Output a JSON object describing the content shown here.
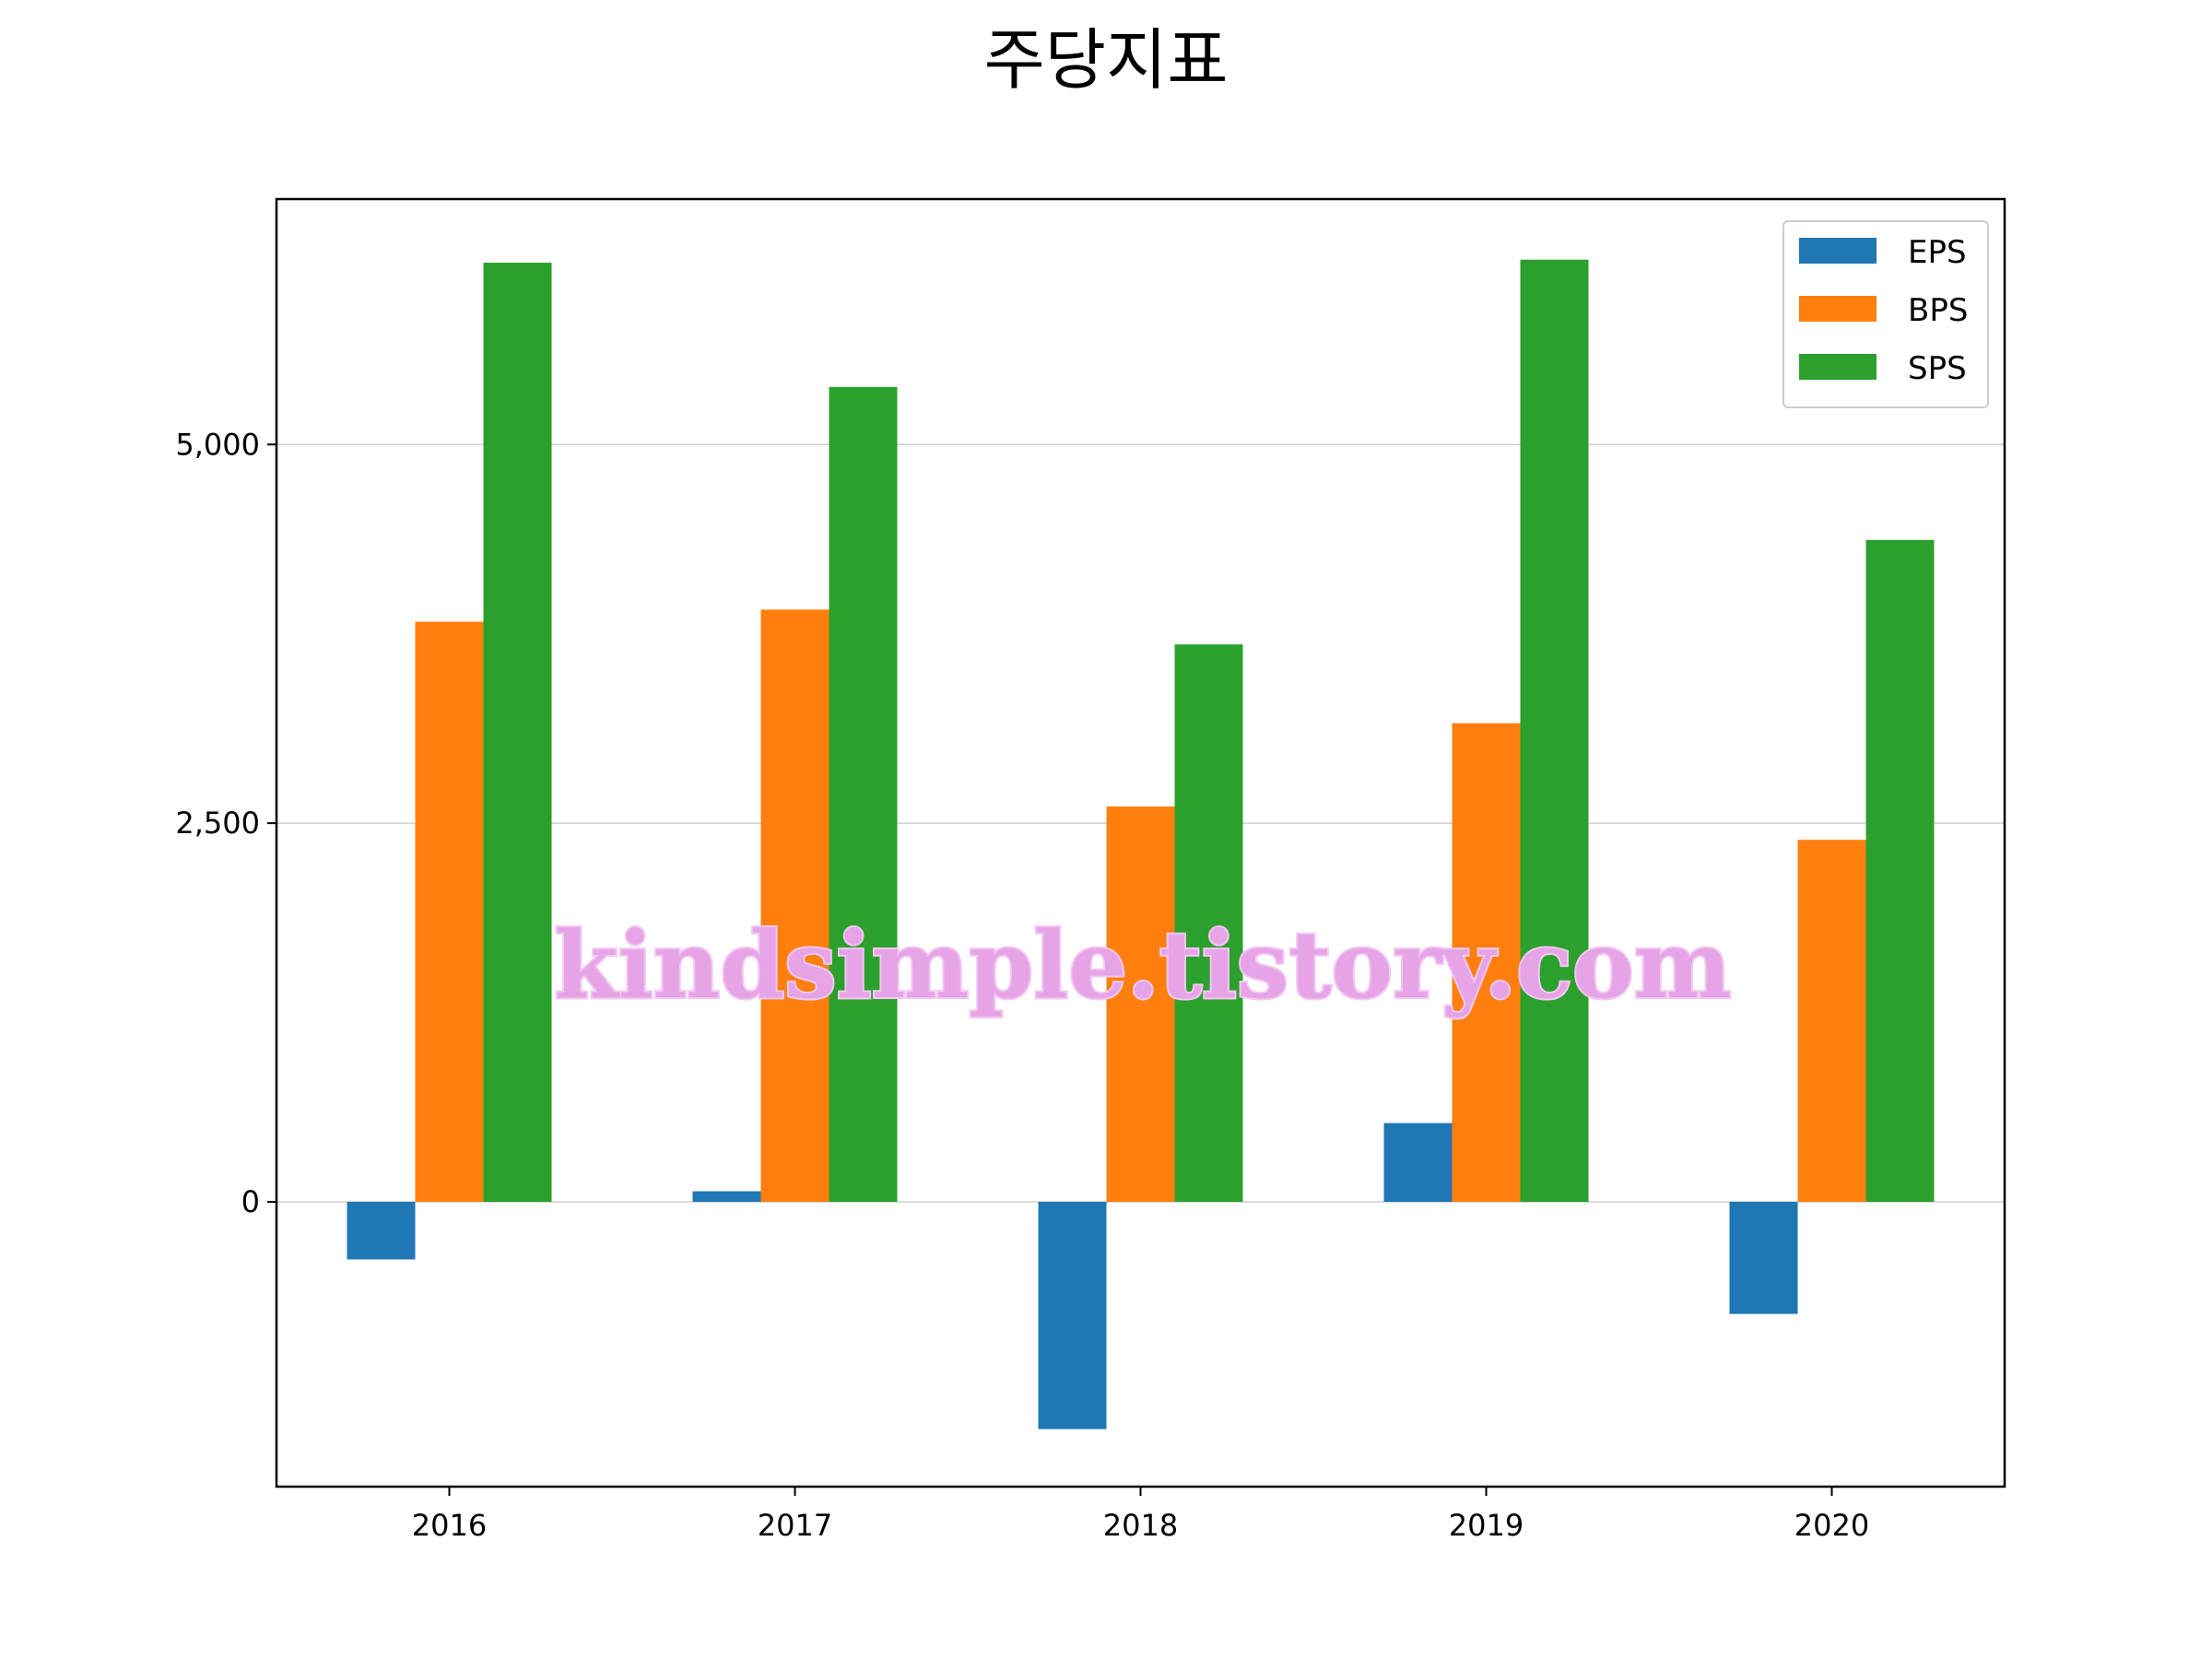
{
  "chart_data": {
    "type": "bar",
    "title": "주당지표",
    "categories": [
      "2016",
      "2017",
      "2018",
      "2019",
      "2020"
    ],
    "series": [
      {
        "name": "EPS",
        "color": "#1f77b4",
        "values": [
          -380,
          70,
          -1500,
          520,
          -740
        ]
      },
      {
        "name": "BPS",
        "color": "#ff7f0e",
        "values": [
          3830,
          3910,
          2610,
          3160,
          2390
        ]
      },
      {
        "name": "SPS",
        "color": "#2ca02c",
        "values": [
          6200,
          5380,
          3680,
          6220,
          4370
        ]
      }
    ],
    "yticks": [
      0,
      2500,
      5000
    ],
    "ytick_labels": [
      "0",
      "2,500",
      "5,000"
    ],
    "ylim": [
      -1880,
      6620
    ],
    "grid": "horizontal",
    "legend_position": "upper right"
  },
  "watermark": "kindsimple.tistory.com"
}
